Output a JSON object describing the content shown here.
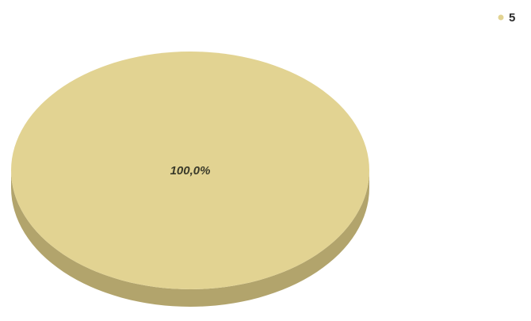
{
  "chart_data": {
    "type": "pie",
    "title": "",
    "style": "3d",
    "slices": [
      {
        "name": "5",
        "value": 100.0,
        "label": "100,0%",
        "color": "#e2d392",
        "side_color": "#b2a46c"
      }
    ],
    "legend": {
      "placement": "top-right",
      "entries": [
        "5"
      ]
    }
  }
}
